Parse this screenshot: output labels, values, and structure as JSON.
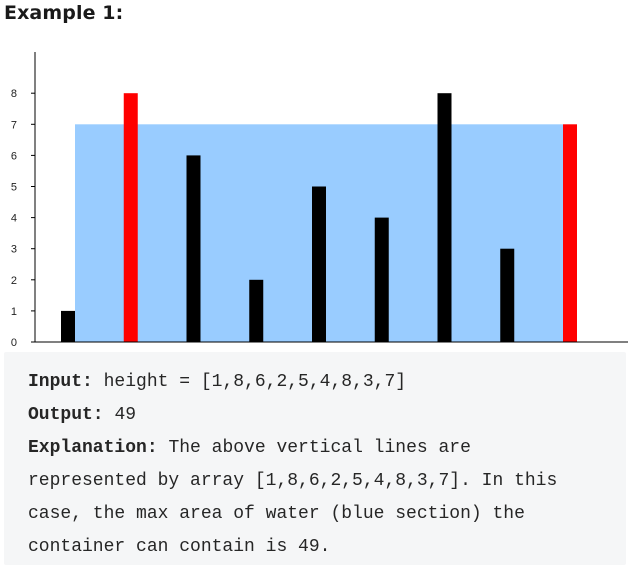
{
  "heading": "Example 1:",
  "chart_data": {
    "type": "bar",
    "title": "",
    "xlabel": "",
    "ylabel": "",
    "x": [
      1,
      2,
      3,
      4,
      5,
      6,
      7,
      8,
      9
    ],
    "values": [
      1,
      8,
      6,
      2,
      5,
      4,
      8,
      3,
      7
    ],
    "highlighted_indices": [
      1,
      8
    ],
    "water_level": 7,
    "water_range": [
      2,
      9
    ],
    "y_ticks": [
      0,
      1,
      2,
      3,
      4,
      5,
      6,
      7,
      8
    ],
    "ylim": [
      0,
      8
    ],
    "grid": false,
    "colors": {
      "bar": "#000000",
      "highlight": "#ff0000",
      "water": "#99ccff",
      "axis": "#000000"
    }
  },
  "example": {
    "input_label": "Input:",
    "input_value": "height = [1,8,6,2,5,4,8,3,7]",
    "output_label": "Output:",
    "output_value": "49",
    "explanation_label": "Explanation:",
    "explanation_lines": [
      "The above vertical lines are",
      "represented by array [1,8,6,2,5,4,8,3,7]. In this",
      "case, the max area of water (blue section) the",
      "container can contain is 49."
    ]
  }
}
